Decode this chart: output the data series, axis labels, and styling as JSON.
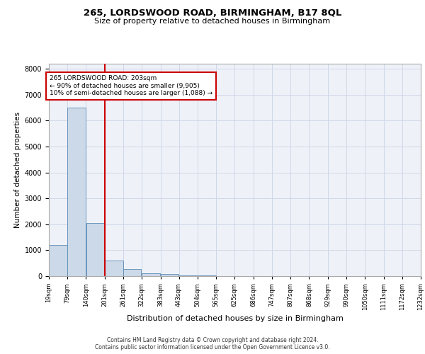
{
  "title1": "265, LORDSWOOD ROAD, BIRMINGHAM, B17 8QL",
  "title2": "Size of property relative to detached houses in Birmingham",
  "xlabel": "Distribution of detached houses by size in Birmingham",
  "ylabel": "Number of detached properties",
  "annotation_line1": "265 LORDSWOOD ROAD: 203sqm",
  "annotation_line2": "← 90% of detached houses are smaller (9,905)",
  "annotation_line3": "10% of semi-detached houses are larger (1,088) →",
  "footer1": "Contains HM Land Registry data © Crown copyright and database right 2024.",
  "footer2": "Contains public sector information licensed under the Open Government Licence v3.0.",
  "bar_color": "#ccd9e8",
  "bar_edge_color": "#5b8ab5",
  "vline_color": "#cc0000",
  "grid_color": "#d0d8e8",
  "background_color": "#eef2f8",
  "fig_background": "#ffffff",
  "bin_edges": [
    19,
    79,
    140,
    201,
    261,
    322,
    383,
    443,
    504,
    565,
    625,
    686,
    747,
    807,
    868,
    929,
    990,
    1050,
    1111,
    1172,
    1232
  ],
  "bin_labels": [
    "19sqm",
    "79sqm",
    "140sqm",
    "201sqm",
    "261sqm",
    "322sqm",
    "383sqm",
    "443sqm",
    "504sqm",
    "565sqm",
    "625sqm",
    "686sqm",
    "747sqm",
    "807sqm",
    "868sqm",
    "929sqm",
    "990sqm",
    "1050sqm",
    "1111sqm",
    "1172sqm",
    "1232sqm"
  ],
  "counts": [
    1200,
    6500,
    2050,
    600,
    280,
    120,
    80,
    40,
    20,
    5,
    2,
    0,
    0,
    0,
    0,
    0,
    0,
    0,
    0,
    0
  ],
  "ylim": [
    0,
    8200
  ],
  "yticks": [
    0,
    1000,
    2000,
    3000,
    4000,
    5000,
    6000,
    7000,
    8000
  ],
  "vline_x": 201,
  "title1_fontsize": 9.5,
  "title2_fontsize": 8,
  "ylabel_fontsize": 7.5,
  "xlabel_fontsize": 8,
  "tick_fontsize": 7,
  "xtick_fontsize": 6,
  "footer_fontsize": 5.5,
  "ann_fontsize": 6.5
}
